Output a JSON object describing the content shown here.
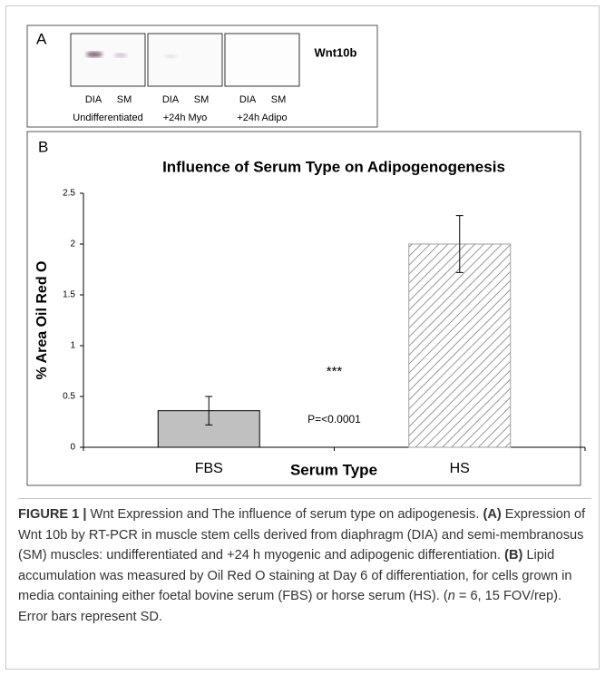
{
  "panel_a": {
    "label": "A",
    "gene": "Wnt10b",
    "groups": [
      {
        "name": "Undifferentiated",
        "lanes": [
          "DIA",
          "SM"
        ]
      },
      {
        "name": "+24h Myo",
        "lanes": [
          "DIA",
          "SM"
        ]
      },
      {
        "name": "+24h Adipo",
        "lanes": [
          "DIA",
          "SM"
        ]
      }
    ]
  },
  "chart_data": {
    "type": "bar",
    "panel_label": "B",
    "title": "Influence of Serum Type on Adipogenogenesis",
    "x_label": "Serum Type",
    "y_label": "% Area Oil Red O",
    "categories": [
      "FBS",
      "HS"
    ],
    "values": [
      0.36,
      2.0
    ],
    "errors": [
      0.14,
      0.28
    ],
    "colors": [
      "#c0c0c0",
      "#a0a0a0"
    ],
    "hatch": [
      false,
      true
    ],
    "annotations": [
      "***",
      "P=<0.0001"
    ],
    "ylim": [
      0,
      2.5
    ],
    "yticks": [
      0,
      0.5,
      1,
      1.5,
      2,
      2.5
    ]
  },
  "caption": {
    "label": "FIGURE 1 |",
    "text_1": " Wnt Expression and The influence of serum type on adipogenesis. ",
    "a_label": "(A)",
    "text_2": " Expression of Wnt 10b by RT-PCR in muscle stem cells derived from diaphragm (DIA) and semi-membranosus (SM) muscles: undifferentiated and +24 h myogenic and adipogenic differentiation. ",
    "b_label": "(B)",
    "text_3": " Lipid accumulation was measured by Oil Red O staining at Day 6 of differentiation, for cells grown in media containing either foetal bovine serum (FBS) or horse serum (HS). (",
    "n_symbol": "n",
    "text_4": " = 6, 15 FOV/rep). Error bars represent SD."
  }
}
